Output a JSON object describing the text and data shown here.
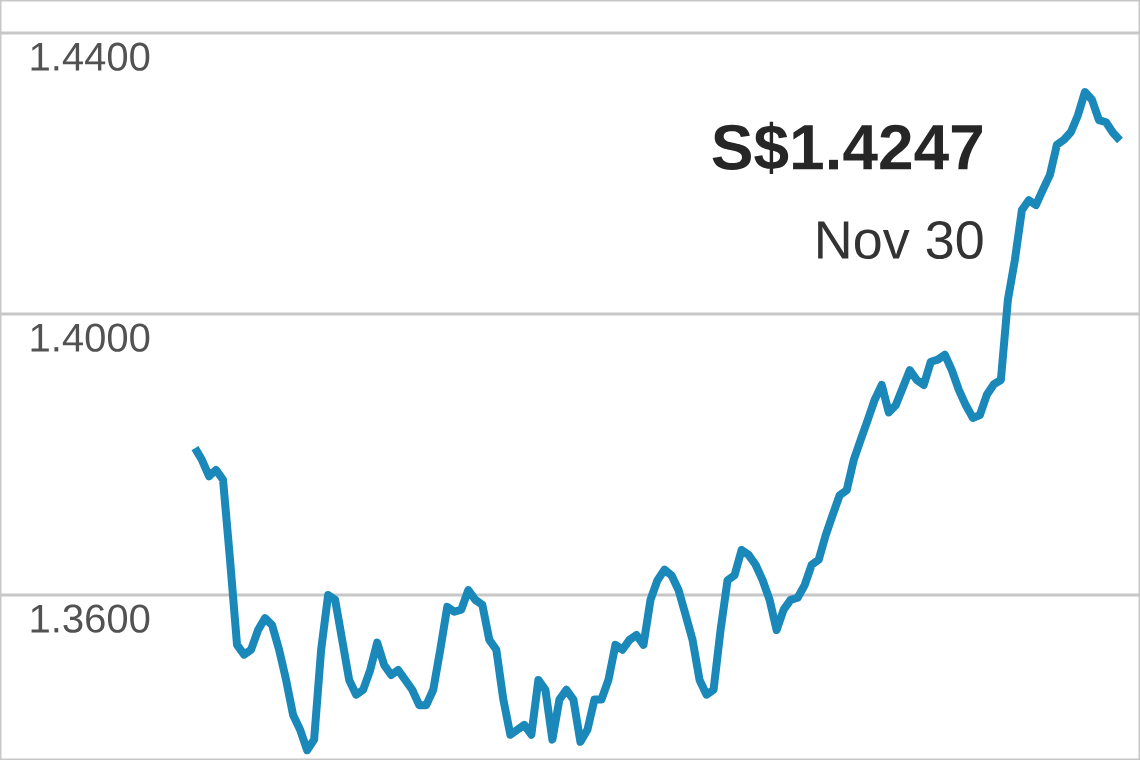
{
  "chart_data": {
    "type": "line",
    "categories": [
      null,
      null,
      null,
      null,
      null,
      null,
      null,
      null,
      null,
      null,
      null,
      null,
      null,
      null,
      null,
      null,
      null,
      null,
      null,
      null,
      null,
      null,
      null,
      null,
      null,
      null,
      null,
      null,
      null,
      null,
      null,
      null,
      null,
      null,
      null,
      null,
      null,
      null,
      null,
      null,
      null,
      null,
      null,
      null,
      null,
      null,
      null,
      null,
      null,
      null,
      null,
      null,
      null,
      null,
      null,
      null,
      null,
      null,
      null,
      null,
      null,
      null,
      null,
      null,
      null,
      null,
      null,
      null,
      null,
      null,
      null,
      null,
      null,
      null,
      null,
      null,
      null,
      null,
      null,
      null,
      null,
      null,
      null,
      null,
      null,
      null,
      null,
      null,
      null,
      null,
      null,
      null,
      null,
      null,
      null,
      null,
      null,
      null,
      null,
      null,
      null,
      null,
      null,
      null,
      null,
      null,
      null,
      null,
      null,
      null,
      null,
      null,
      null,
      null,
      null,
      null,
      null,
      null,
      null,
      null,
      null,
      null,
      null,
      null,
      null,
      null,
      null,
      null,
      null,
      null,
      null,
      null,
      null
    ],
    "values": [
      1.3809,
      1.3792,
      1.3769,
      1.3778,
      1.3764,
      1.365,
      1.3529,
      1.3515,
      1.3522,
      1.355,
      1.3567,
      1.3557,
      1.3522,
      1.3479,
      1.3429,
      1.3408,
      1.3379,
      1.3394,
      1.3522,
      1.36,
      1.3593,
      1.3536,
      1.3479,
      1.3458,
      1.3465,
      1.3493,
      1.3532,
      1.35,
      1.3486,
      1.3493,
      1.3479,
      1.3465,
      1.3443,
      1.3443,
      1.3465,
      1.3522,
      1.3583,
      1.3576,
      1.3579,
      1.3607,
      1.3593,
      1.3586,
      1.3536,
      1.3522,
      1.3451,
      1.3401,
      1.3408,
      1.3415,
      1.3401,
      1.3479,
      1.3465,
      1.3394,
      1.3451,
      1.3465,
      1.3451,
      1.3391,
      1.3408,
      1.3451,
      1.3451,
      1.3479,
      1.3529,
      1.3522,
      1.3536,
      1.3543,
      1.3529,
      1.3593,
      1.3621,
      1.3636,
      1.3628,
      1.3607,
      1.3572,
      1.3536,
      1.3479,
      1.3458,
      1.3465,
      1.355,
      1.3621,
      1.3628,
      1.3664,
      1.3657,
      1.3643,
      1.3621,
      1.3593,
      1.355,
      1.3579,
      1.3593,
      1.3596,
      1.3614,
      1.3643,
      1.365,
      1.3685,
      1.3714,
      1.3742,
      1.3749,
      1.3792,
      1.3821,
      1.3849,
      1.3878,
      1.3899,
      1.386,
      1.387,
      1.3895,
      1.392,
      1.3906,
      1.3899,
      1.3932,
      1.3935,
      1.3942,
      1.392,
      1.3892,
      1.387,
      1.3852,
      1.3856,
      1.3885,
      1.39,
      1.3906,
      1.402,
      1.4077,
      1.4148,
      1.4162,
      1.4155,
      1.4177,
      1.4198,
      1.4241,
      1.4248,
      1.4259,
      1.4283,
      1.4316,
      1.4305,
      1.4276,
      1.4273,
      1.4258,
      1.4247
    ],
    "color": "#1a88b8",
    "yticks": [
      {
        "value": 1.36,
        "label": "1.3600"
      },
      {
        "value": 1.4,
        "label": "1.4000"
      },
      {
        "value": 1.44,
        "label": "1.4400"
      }
    ],
    "ylim": [
      1.3365,
      1.4447
    ],
    "grid": "y",
    "tick_labels": "y",
    "annotations": [
      "**S$1.4247**",
      "Nov 30"
    ]
  }
}
